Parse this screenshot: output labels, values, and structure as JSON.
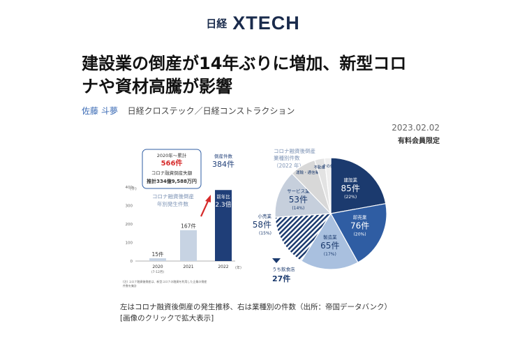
{
  "header": {
    "logo_nikkei": "日経",
    "logo_xtech": "XTECH"
  },
  "article": {
    "title_line1": "建設業の倒産が14年ぶりに増加、新型コロ",
    "title_line2": "ナや資材高騰が影響",
    "author": "佐藤 斗夢",
    "source": "日経クロステック／日経コンストラクション",
    "date": "2023.02.02",
    "membership": "有料会員限定"
  },
  "figure": {
    "callout_line1": "2020年～累計",
    "callout_count": "566件",
    "callout_line3": "コロナ融資倒産失額",
    "callout_line4": "推計334億9,588万円",
    "bar_chart_label_line1": "コロナ融資後倒産",
    "bar_chart_label_line2": "年別発生件数",
    "yaxis_unit": "(件)",
    "badge_line1": "倒産件数",
    "badge_count": "384件",
    "badge_yoy_label": "前年比",
    "badge_yoy_value": "2.3倍",
    "footnote_line1": "(注) コロナ融資後倒産は、新型コロナの融資を利用した企業の倒産",
    "footnote_line2": "件数を集計",
    "pie_label_line1": "コロナ融資後倒産",
    "pie_label_line2": "業種別件数",
    "pie_label_line3": "（2022 年）",
    "subsegment_label": "うち飲食店",
    "subsegment_value": "27件"
  },
  "chart_data": [
    {
      "type": "bar",
      "categories": [
        "2020",
        "2021",
        "2022"
      ],
      "category_notes": [
        "(7-12月)",
        "",
        ""
      ],
      "values": [
        15,
        167,
        384
      ],
      "value_labels": [
        "15件",
        "167件",
        "384件"
      ],
      "yticks": [
        0,
        100,
        200,
        300,
        400
      ],
      "ylim": [
        0,
        400
      ],
      "xunit": "(年)",
      "colors": [
        "#c7d3e3",
        "#c7d3e3",
        "#1f3e78"
      ]
    },
    {
      "type": "pie",
      "slices": [
        {
          "label": "建設業",
          "count": "85件",
          "pct": "(22%)",
          "value": 85,
          "color": "#1b3a6e",
          "text": "#ffffff"
        },
        {
          "label": "卸売業",
          "count": "76件",
          "pct": "(20%)",
          "value": 76,
          "color": "#2f5da3",
          "text": "#ffffff"
        },
        {
          "label": "製造業",
          "count": "65件",
          "pct": "(17%)",
          "value": 65,
          "color": "#a9c0df",
          "text": "#1b3a6e"
        },
        {
          "label": "小売業",
          "count": "58件",
          "pct": "(15%)",
          "value": 58,
          "color": "#355a92",
          "text": "#1b3a6e"
        },
        {
          "label": "サービス業",
          "count": "53件",
          "pct": "(14%)",
          "value": 53,
          "color": "#c6cfdc",
          "text": "#1b3a6e"
        },
        {
          "label": "運輸・通信業",
          "count": "",
          "pct": "",
          "value": 29,
          "color": "#d8d8d8",
          "text": "#1b3a6e"
        },
        {
          "label": "不動産業",
          "count": "",
          "pct": "",
          "value": 11,
          "color": "#e3e3e3",
          "text": "#1b3a6e"
        },
        {
          "label": "その他",
          "count": "",
          "pct": "",
          "value": 7,
          "color": "#eeeeee",
          "text": "#1b3a6e"
        }
      ]
    }
  ],
  "caption": {
    "line1": "左はコロナ融資後倒産の発生推移、右は業種別の件数（出所：帝国データバンク）",
    "line2": "[画像のクリックで拡大表示]"
  }
}
